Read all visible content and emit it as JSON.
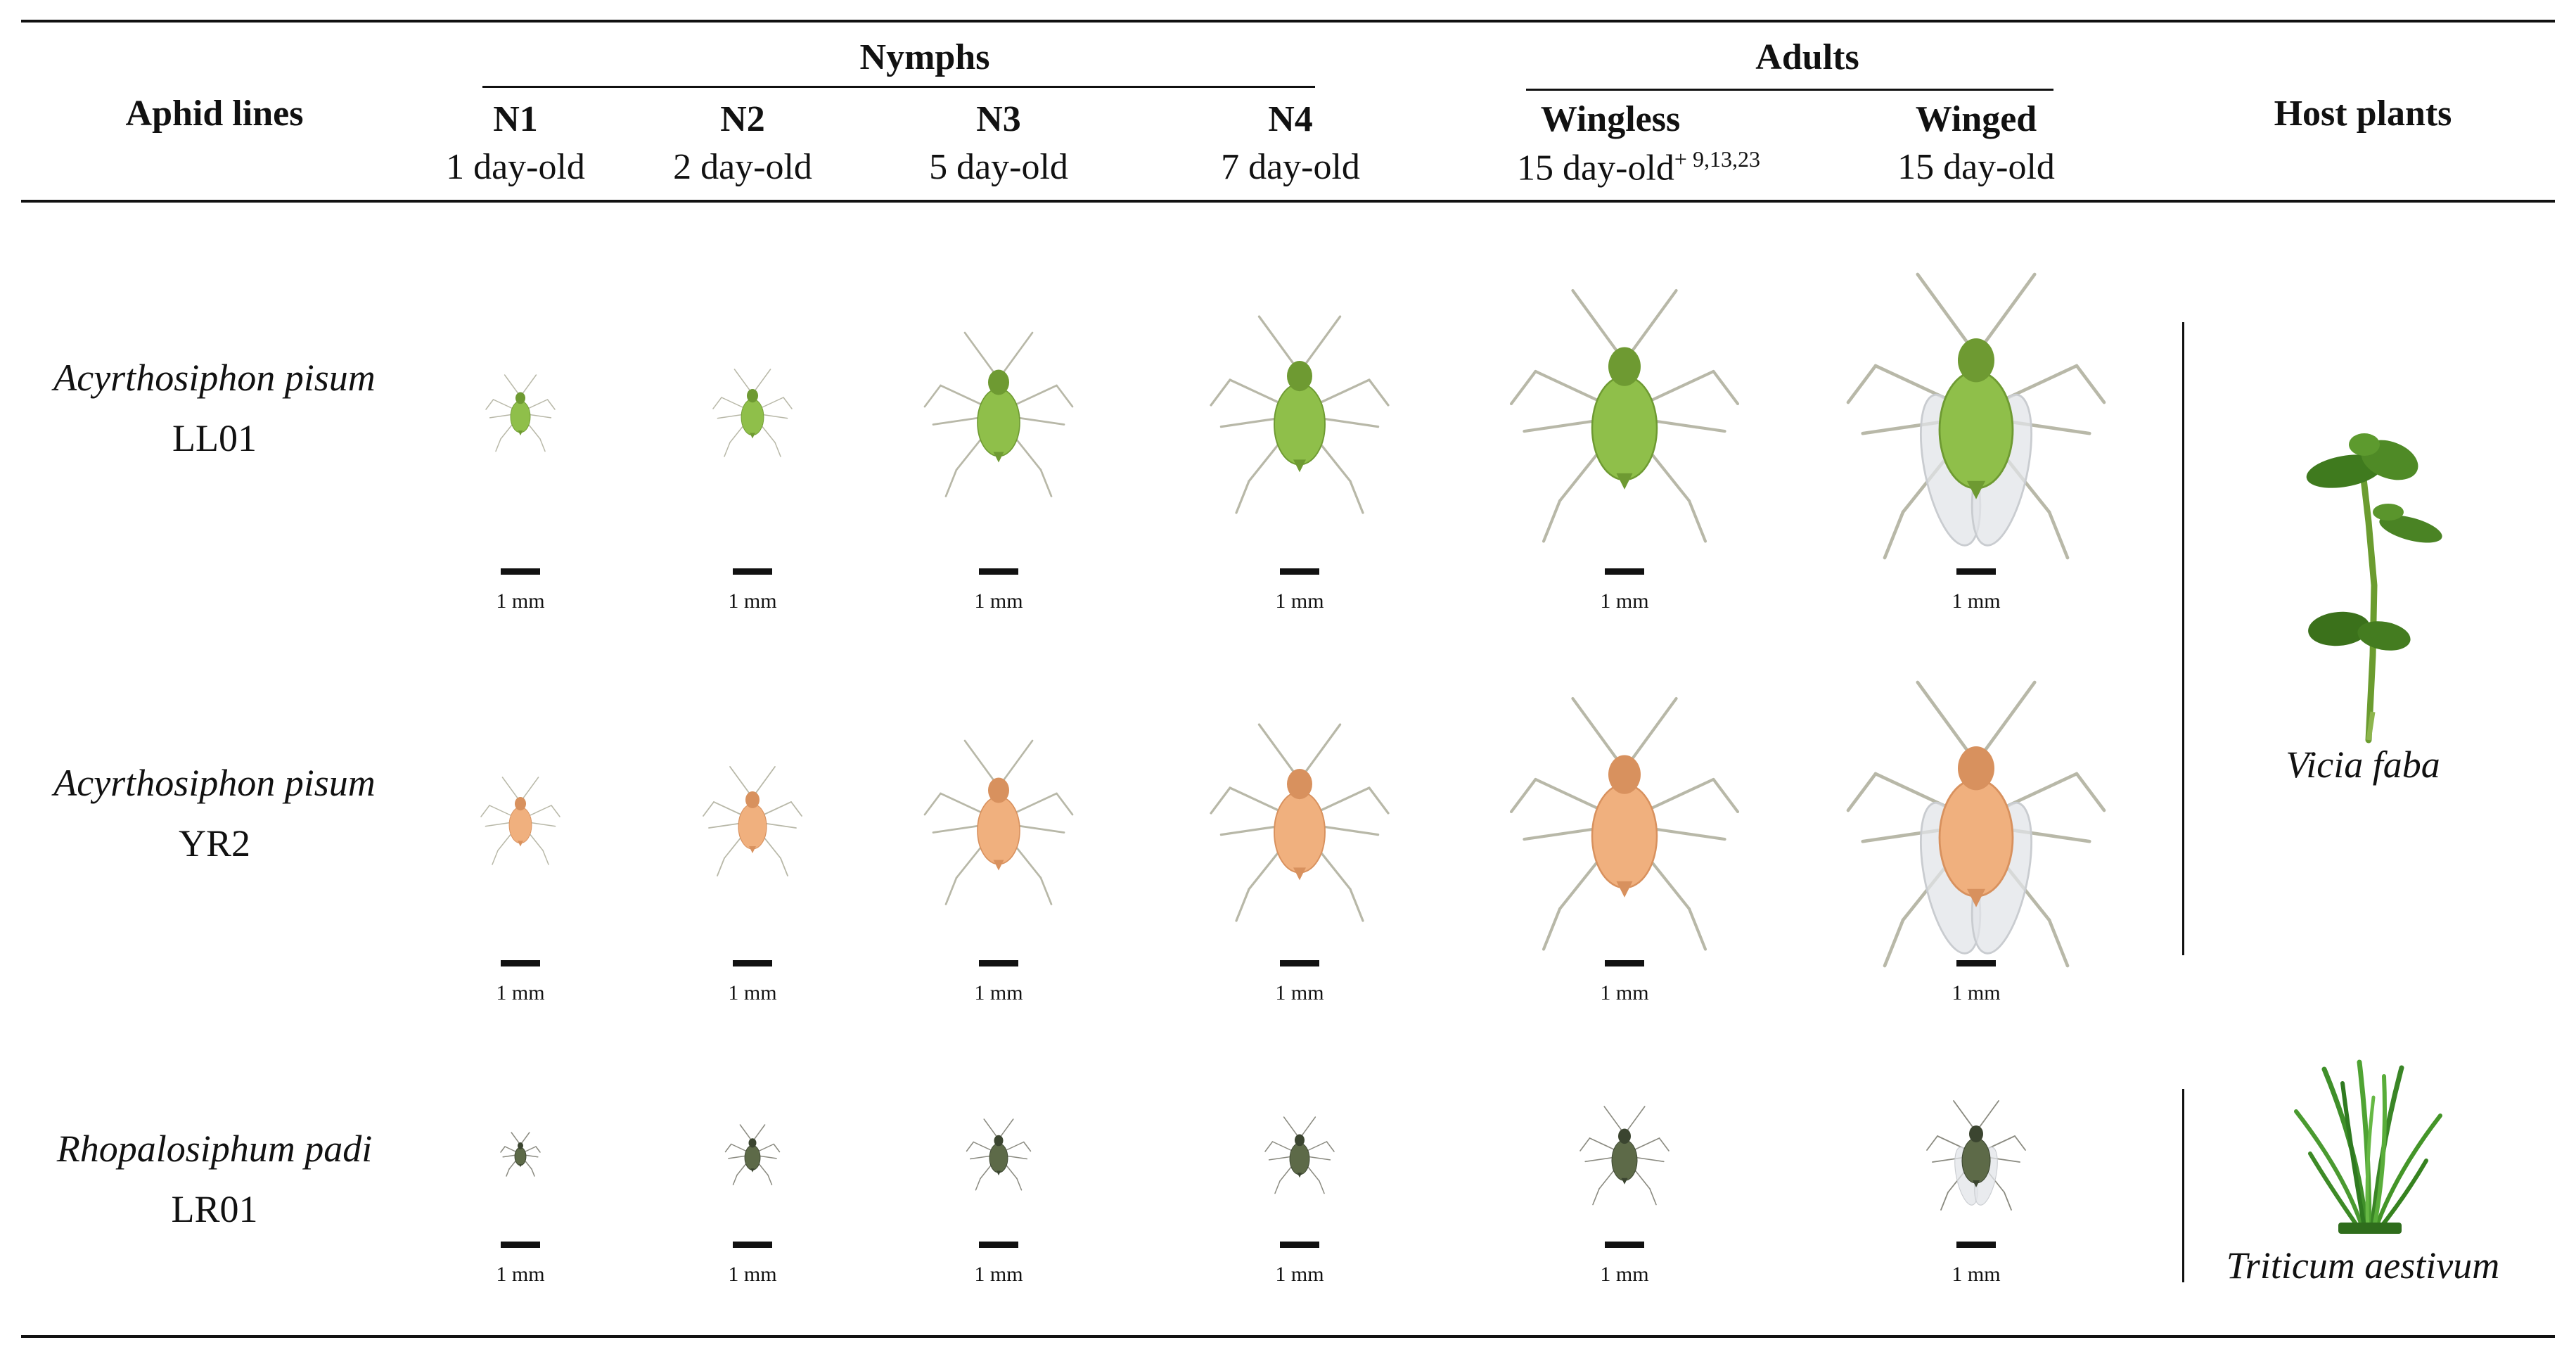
{
  "header": {
    "aphid_lines": "Aphid lines",
    "nymphs": "Nymphs",
    "adults": "Adults",
    "host_plants": "Host plants",
    "stages": [
      {
        "name": "N1",
        "age": "1 day-old"
      },
      {
        "name": "N2",
        "age": "2 day-old"
      },
      {
        "name": "N3",
        "age": "5 day-old"
      },
      {
        "name": "N4",
        "age": "7 day-old"
      },
      {
        "name": "Wingless",
        "age": "15 day-old",
        "age_sup": "+ 9,13,23"
      },
      {
        "name": "Winged",
        "age": "15 day-old"
      }
    ]
  },
  "rows": [
    {
      "species": "Acyrthosiphon pisum",
      "line": "LL01",
      "color": "#8fbf4a",
      "dark": "#6e9a32"
    },
    {
      "species": "Acyrthosiphon pisum",
      "line": "YR2",
      "color": "#f0b07e",
      "dark": "#d8915e"
    },
    {
      "species": "Rhopalosiphum padi",
      "line": "LR01",
      "color": "#5d6a48",
      "dark": "#3b4530"
    }
  ],
  "scale_label": "1 mm",
  "host_plants": [
    {
      "name": "Vicia faba",
      "icon": "bean-plant-icon"
    },
    {
      "name": "Triticum aestivum",
      "icon": "wheat-grass-icon"
    }
  ]
}
